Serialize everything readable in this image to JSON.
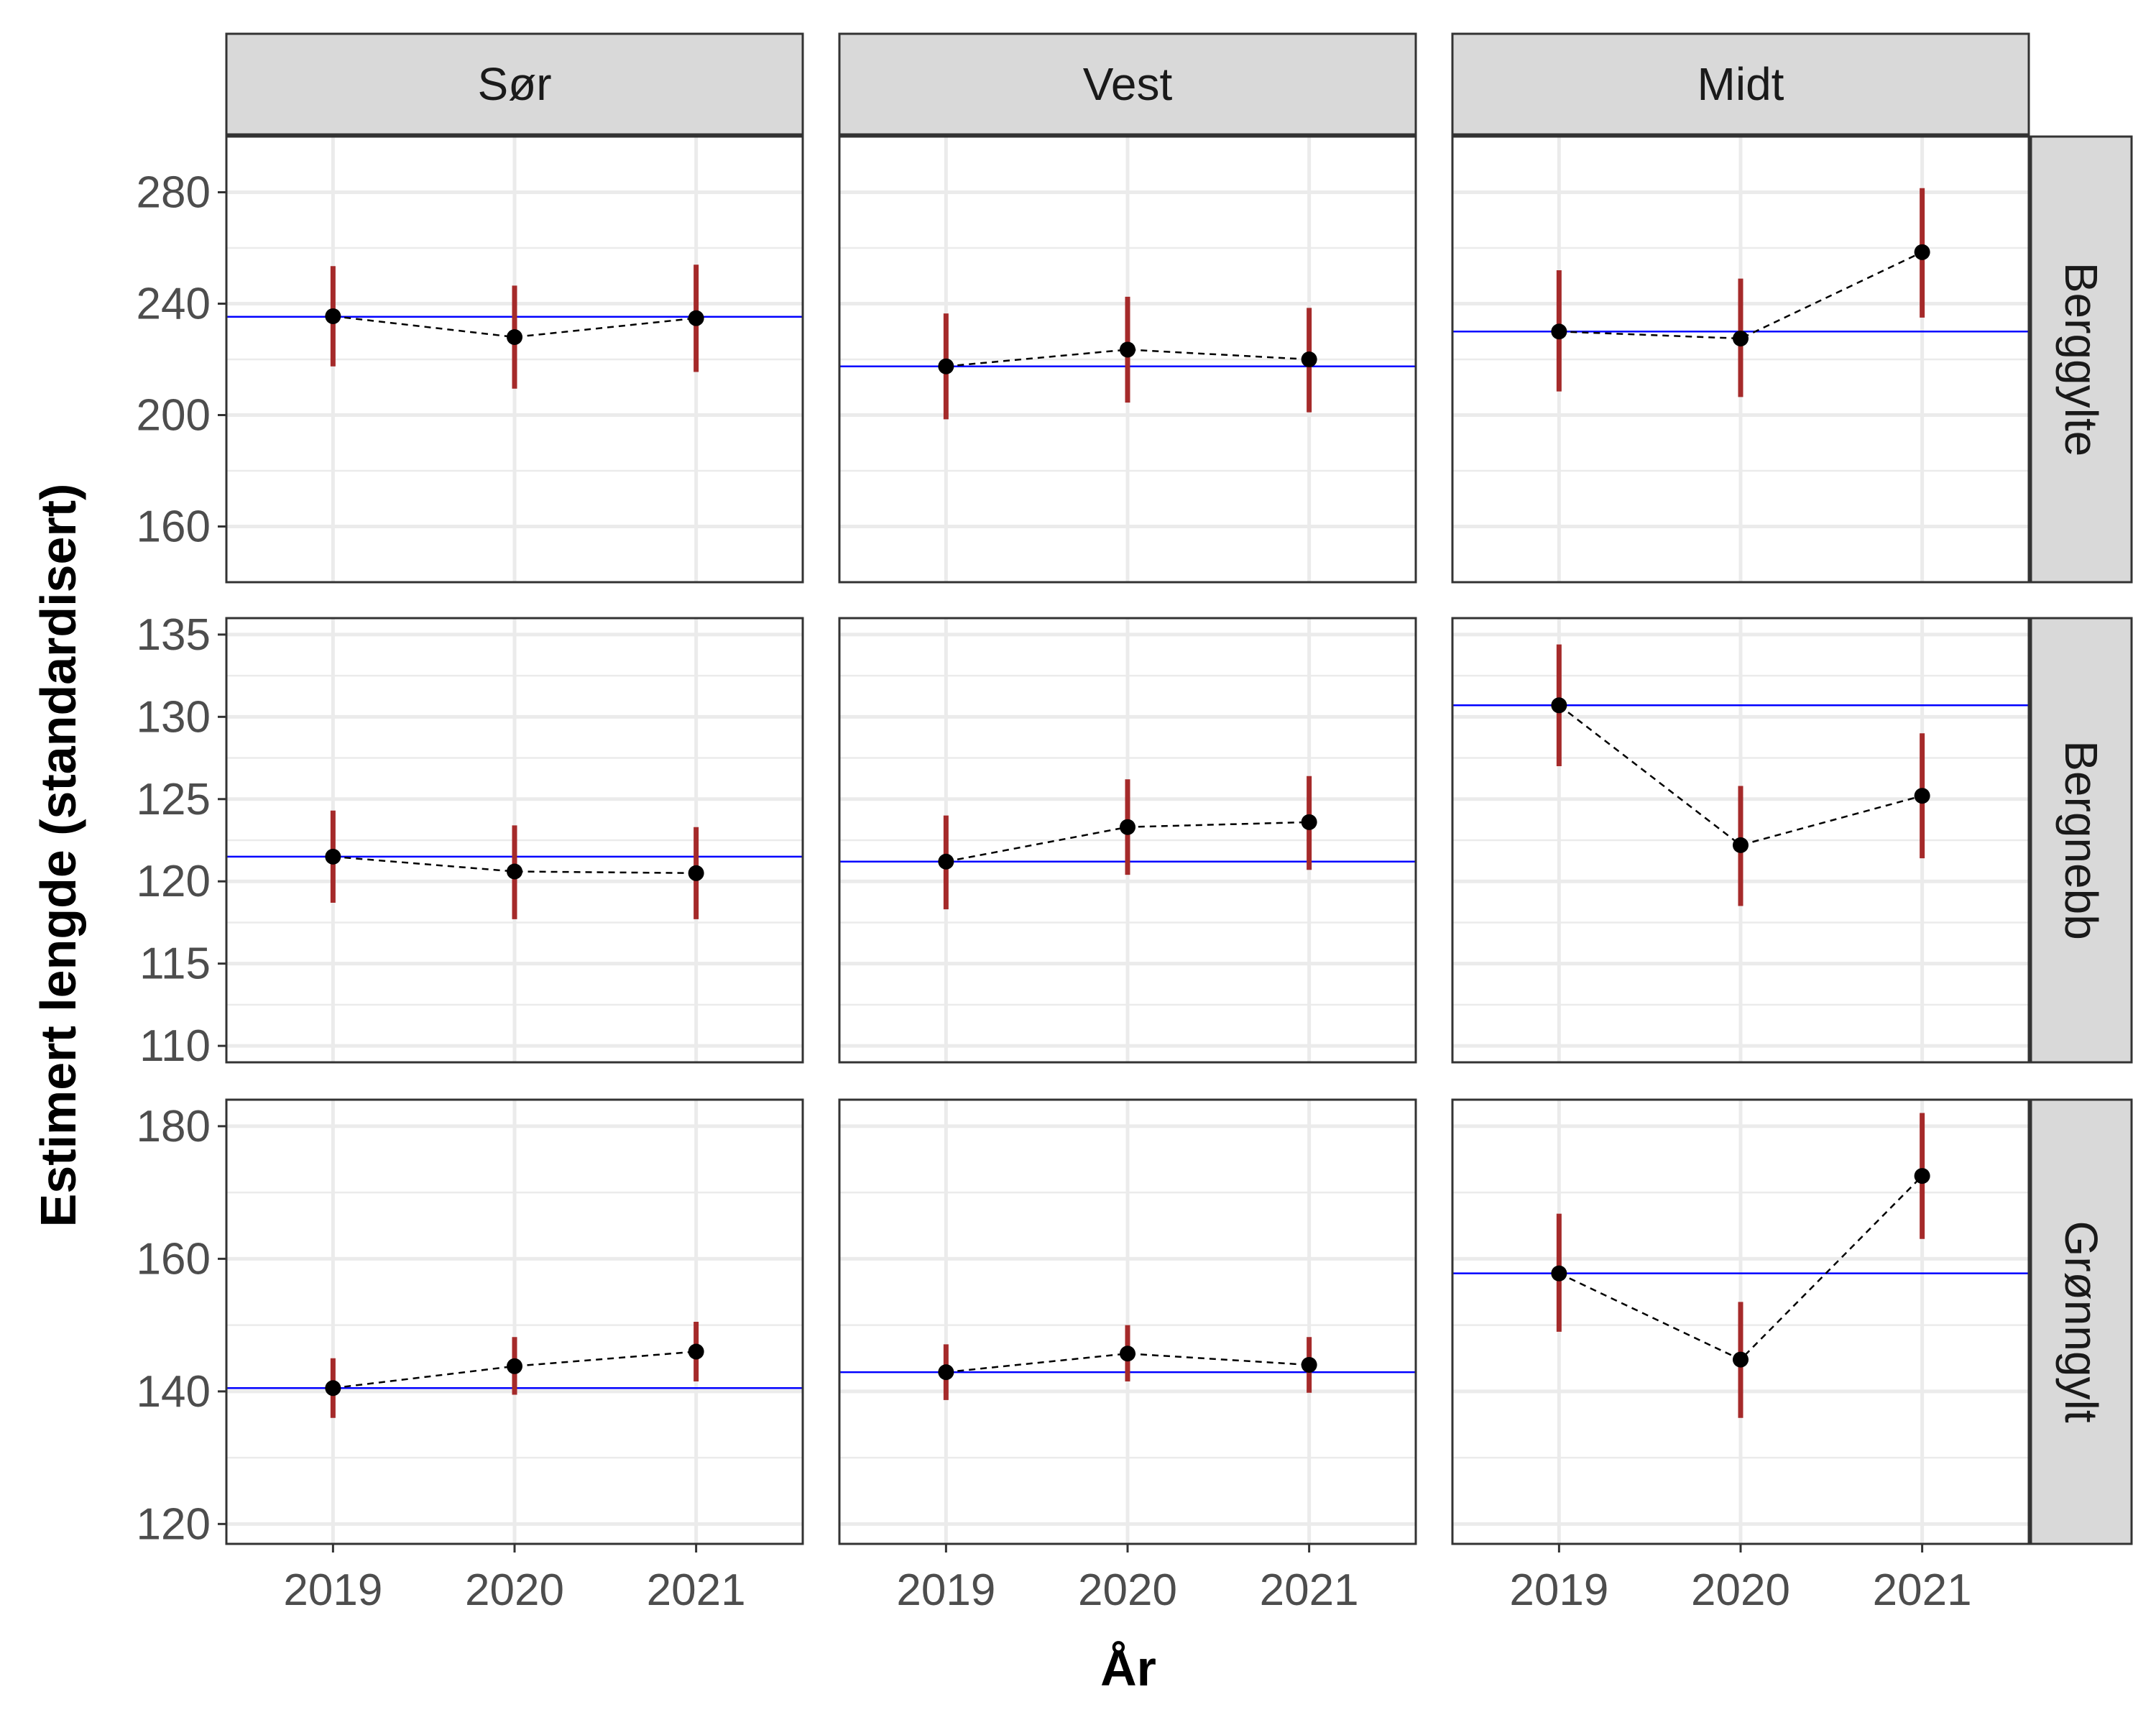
{
  "chart_data": {
    "type": "scatter",
    "xlabel": "År",
    "ylabel": "Estimert lengde (standardisert)",
    "x": [
      "2019",
      "2020",
      "2021"
    ],
    "columns": [
      "Sør",
      "Vest",
      "Midt"
    ],
    "rows": [
      {
        "name": "Berggylte",
        "ylim": [
          140,
          300
        ],
        "yticks": [
          160,
          200,
          240,
          280
        ],
        "panels": [
          {
            "region": "Sør",
            "reference": 235.3,
            "values": [
              235.5,
              228.0,
              234.8
            ],
            "lower": [
              217.5,
              209.5,
              215.5
            ],
            "upper": [
              253.5,
              246.5,
              254.0
            ]
          },
          {
            "region": "Vest",
            "reference": 217.5,
            "values": [
              217.5,
              223.5,
              220.0
            ],
            "lower": [
              198.5,
              204.5,
              201.0
            ],
            "upper": [
              236.5,
              242.5,
              238.5
            ]
          },
          {
            "region": "Midt",
            "reference": 230.0,
            "values": [
              230.0,
              227.5,
              258.5
            ],
            "lower": [
              208.5,
              206.5,
              235.0
            ],
            "upper": [
              252.0,
              249.0,
              281.5
            ]
          }
        ]
      },
      {
        "name": "Bergnebb",
        "ylim": [
          109,
          136
        ],
        "yticks": [
          110,
          115,
          120,
          125,
          130,
          135
        ],
        "panels": [
          {
            "region": "Sør",
            "reference": 121.5,
            "values": [
              121.5,
              120.6,
              120.5
            ],
            "lower": [
              118.7,
              117.7,
              117.7
            ],
            "upper": [
              124.3,
              123.4,
              123.3
            ]
          },
          {
            "region": "Vest",
            "reference": 121.2,
            "values": [
              121.2,
              123.3,
              123.6
            ],
            "lower": [
              118.3,
              120.4,
              120.7
            ],
            "upper": [
              124.0,
              126.2,
              126.4
            ]
          },
          {
            "region": "Midt",
            "reference": 130.7,
            "values": [
              130.7,
              122.2,
              125.2
            ],
            "lower": [
              127.0,
              118.5,
              121.4
            ],
            "upper": [
              134.4,
              125.8,
              129.0
            ]
          }
        ]
      },
      {
        "name": "Grønngylt",
        "ylim": [
          117,
          184
        ],
        "yticks": [
          120,
          140,
          160,
          180
        ],
        "panels": [
          {
            "region": "Sør",
            "reference": 140.5,
            "values": [
              140.5,
              143.8,
              146.0
            ],
            "lower": [
              136.0,
              139.5,
              141.5
            ],
            "upper": [
              145.0,
              148.2,
              150.5
            ]
          },
          {
            "region": "Vest",
            "reference": 142.9,
            "values": [
              142.9,
              145.7,
              144.0
            ],
            "lower": [
              138.7,
              141.5,
              139.8
            ],
            "upper": [
              147.1,
              150.0,
              148.2
            ]
          },
          {
            "region": "Midt",
            "reference": 157.8,
            "values": [
              157.8,
              144.8,
              172.5
            ],
            "lower": [
              149.0,
              136.0,
              163.0
            ],
            "upper": [
              166.8,
              153.5,
              182.0
            ]
          }
        ]
      }
    ],
    "colors": {
      "point": "#000000",
      "error_bar": "#a52a2a",
      "reference_line": "#0000ff",
      "connector": "#000000",
      "grid": "#ebebeb",
      "strip_fill": "#d9d9d9",
      "panel_border": "#333333"
    },
    "grid": true,
    "legend": "none"
  }
}
